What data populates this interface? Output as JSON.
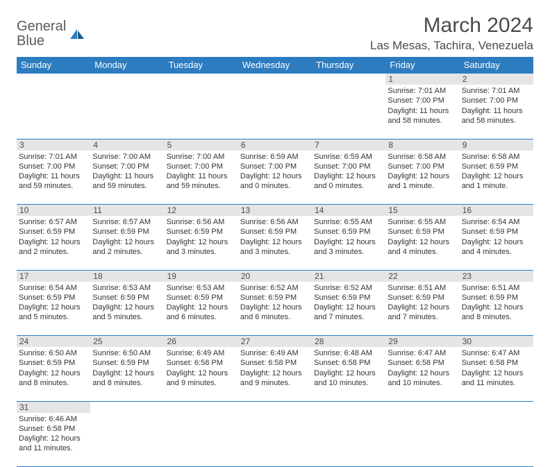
{
  "logo": {
    "text1": "General",
    "text2": "Blue"
  },
  "title": "March 2024",
  "location": "Las Mesas, Tachira, Venezuela",
  "header_color": "#2d7cc0",
  "daynum_bg": "#e5e5e5",
  "text_color": "#4a4a4a",
  "days": [
    "Sunday",
    "Monday",
    "Tuesday",
    "Wednesday",
    "Thursday",
    "Friday",
    "Saturday"
  ],
  "weeks": [
    [
      null,
      null,
      null,
      null,
      null,
      {
        "n": "1",
        "sr": "Sunrise: 7:01 AM",
        "ss": "Sunset: 7:00 PM",
        "dl": "Daylight: 11 hours and 58 minutes."
      },
      {
        "n": "2",
        "sr": "Sunrise: 7:01 AM",
        "ss": "Sunset: 7:00 PM",
        "dl": "Daylight: 11 hours and 58 minutes."
      }
    ],
    [
      {
        "n": "3",
        "sr": "Sunrise: 7:01 AM",
        "ss": "Sunset: 7:00 PM",
        "dl": "Daylight: 11 hours and 59 minutes."
      },
      {
        "n": "4",
        "sr": "Sunrise: 7:00 AM",
        "ss": "Sunset: 7:00 PM",
        "dl": "Daylight: 11 hours and 59 minutes."
      },
      {
        "n": "5",
        "sr": "Sunrise: 7:00 AM",
        "ss": "Sunset: 7:00 PM",
        "dl": "Daylight: 11 hours and 59 minutes."
      },
      {
        "n": "6",
        "sr": "Sunrise: 6:59 AM",
        "ss": "Sunset: 7:00 PM",
        "dl": "Daylight: 12 hours and 0 minutes."
      },
      {
        "n": "7",
        "sr": "Sunrise: 6:59 AM",
        "ss": "Sunset: 7:00 PM",
        "dl": "Daylight: 12 hours and 0 minutes."
      },
      {
        "n": "8",
        "sr": "Sunrise: 6:58 AM",
        "ss": "Sunset: 7:00 PM",
        "dl": "Daylight: 12 hours and 1 minute."
      },
      {
        "n": "9",
        "sr": "Sunrise: 6:58 AM",
        "ss": "Sunset: 6:59 PM",
        "dl": "Daylight: 12 hours and 1 minute."
      }
    ],
    [
      {
        "n": "10",
        "sr": "Sunrise: 6:57 AM",
        "ss": "Sunset: 6:59 PM",
        "dl": "Daylight: 12 hours and 2 minutes."
      },
      {
        "n": "11",
        "sr": "Sunrise: 6:57 AM",
        "ss": "Sunset: 6:59 PM",
        "dl": "Daylight: 12 hours and 2 minutes."
      },
      {
        "n": "12",
        "sr": "Sunrise: 6:56 AM",
        "ss": "Sunset: 6:59 PM",
        "dl": "Daylight: 12 hours and 3 minutes."
      },
      {
        "n": "13",
        "sr": "Sunrise: 6:56 AM",
        "ss": "Sunset: 6:59 PM",
        "dl": "Daylight: 12 hours and 3 minutes."
      },
      {
        "n": "14",
        "sr": "Sunrise: 6:55 AM",
        "ss": "Sunset: 6:59 PM",
        "dl": "Daylight: 12 hours and 3 minutes."
      },
      {
        "n": "15",
        "sr": "Sunrise: 6:55 AM",
        "ss": "Sunset: 6:59 PM",
        "dl": "Daylight: 12 hours and 4 minutes."
      },
      {
        "n": "16",
        "sr": "Sunrise: 6:54 AM",
        "ss": "Sunset: 6:59 PM",
        "dl": "Daylight: 12 hours and 4 minutes."
      }
    ],
    [
      {
        "n": "17",
        "sr": "Sunrise: 6:54 AM",
        "ss": "Sunset: 6:59 PM",
        "dl": "Daylight: 12 hours and 5 minutes."
      },
      {
        "n": "18",
        "sr": "Sunrise: 6:53 AM",
        "ss": "Sunset: 6:59 PM",
        "dl": "Daylight: 12 hours and 5 minutes."
      },
      {
        "n": "19",
        "sr": "Sunrise: 6:53 AM",
        "ss": "Sunset: 6:59 PM",
        "dl": "Daylight: 12 hours and 6 minutes."
      },
      {
        "n": "20",
        "sr": "Sunrise: 6:52 AM",
        "ss": "Sunset: 6:59 PM",
        "dl": "Daylight: 12 hours and 6 minutes."
      },
      {
        "n": "21",
        "sr": "Sunrise: 6:52 AM",
        "ss": "Sunset: 6:59 PM",
        "dl": "Daylight: 12 hours and 7 minutes."
      },
      {
        "n": "22",
        "sr": "Sunrise: 6:51 AM",
        "ss": "Sunset: 6:59 PM",
        "dl": "Daylight: 12 hours and 7 minutes."
      },
      {
        "n": "23",
        "sr": "Sunrise: 6:51 AM",
        "ss": "Sunset: 6:59 PM",
        "dl": "Daylight: 12 hours and 8 minutes."
      }
    ],
    [
      {
        "n": "24",
        "sr": "Sunrise: 6:50 AM",
        "ss": "Sunset: 6:59 PM",
        "dl": "Daylight: 12 hours and 8 minutes."
      },
      {
        "n": "25",
        "sr": "Sunrise: 6:50 AM",
        "ss": "Sunset: 6:59 PM",
        "dl": "Daylight: 12 hours and 8 minutes."
      },
      {
        "n": "26",
        "sr": "Sunrise: 6:49 AM",
        "ss": "Sunset: 6:58 PM",
        "dl": "Daylight: 12 hours and 9 minutes."
      },
      {
        "n": "27",
        "sr": "Sunrise: 6:49 AM",
        "ss": "Sunset: 6:58 PM",
        "dl": "Daylight: 12 hours and 9 minutes."
      },
      {
        "n": "28",
        "sr": "Sunrise: 6:48 AM",
        "ss": "Sunset: 6:58 PM",
        "dl": "Daylight: 12 hours and 10 minutes."
      },
      {
        "n": "29",
        "sr": "Sunrise: 6:47 AM",
        "ss": "Sunset: 6:58 PM",
        "dl": "Daylight: 12 hours and 10 minutes."
      },
      {
        "n": "30",
        "sr": "Sunrise: 6:47 AM",
        "ss": "Sunset: 6:58 PM",
        "dl": "Daylight: 12 hours and 11 minutes."
      }
    ],
    [
      {
        "n": "31",
        "sr": "Sunrise: 6:46 AM",
        "ss": "Sunset: 6:58 PM",
        "dl": "Daylight: 12 hours and 11 minutes."
      },
      null,
      null,
      null,
      null,
      null,
      null
    ]
  ]
}
